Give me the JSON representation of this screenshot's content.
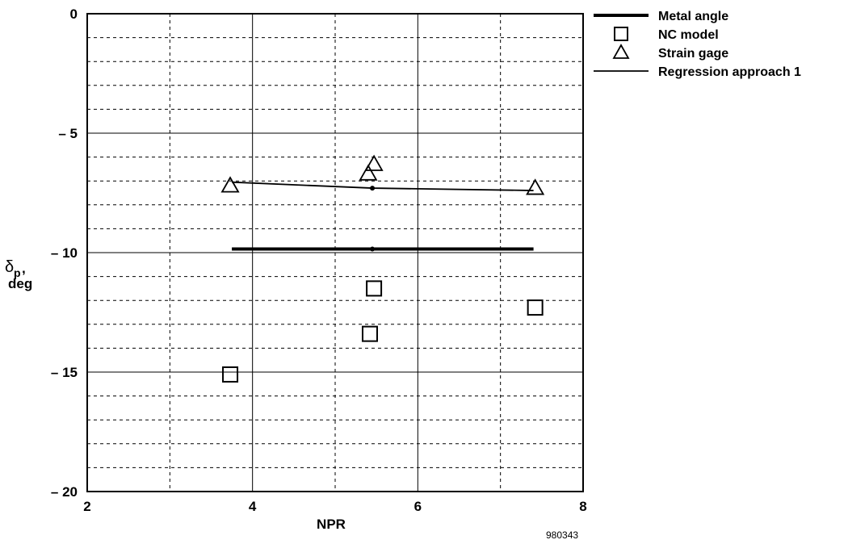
{
  "chart_data": {
    "type": "scatter",
    "title": "",
    "xlabel": "NPR",
    "ylabel_main": "δ",
    "ylabel_sub": "p",
    "ylabel_sep": ",",
    "ylabel_unit": "deg",
    "xlim": [
      2,
      8
    ],
    "ylim": [
      -20,
      0
    ],
    "x_ticks": [
      2,
      4,
      6,
      8
    ],
    "x_tick_labels": [
      "2",
      "4",
      "6",
      "8"
    ],
    "y_ticks": [
      0,
      -5,
      -10,
      -15,
      -20
    ],
    "y_tick_labels": [
      "0",
      "– 5",
      "– 10",
      "– 15",
      "– 20"
    ],
    "grid": true,
    "legend_position": "outside top-right",
    "figure_id": "980343",
    "series": [
      {
        "name": "Metal angle",
        "kind": "line",
        "style": "thick",
        "x": [
          3.75,
          5.45,
          7.4
        ],
        "y": [
          -9.85,
          -9.85,
          -9.85
        ]
      },
      {
        "name": "NC model",
        "kind": "marker",
        "marker": "square",
        "x": [
          3.73,
          5.42,
          5.47,
          7.42
        ],
        "y": [
          -15.1,
          -13.4,
          -11.5,
          -12.3
        ]
      },
      {
        "name": "Strain gage",
        "kind": "marker",
        "marker": "triangle",
        "x": [
          3.73,
          5.4,
          5.47,
          7.42
        ],
        "y": [
          -7.2,
          -6.7,
          -6.3,
          -7.3
        ]
      },
      {
        "name": "Regression approach 1",
        "kind": "line",
        "style": "thin",
        "x": [
          3.75,
          5.45,
          7.4
        ],
        "y": [
          -7.05,
          -7.3,
          -7.4
        ]
      }
    ]
  }
}
